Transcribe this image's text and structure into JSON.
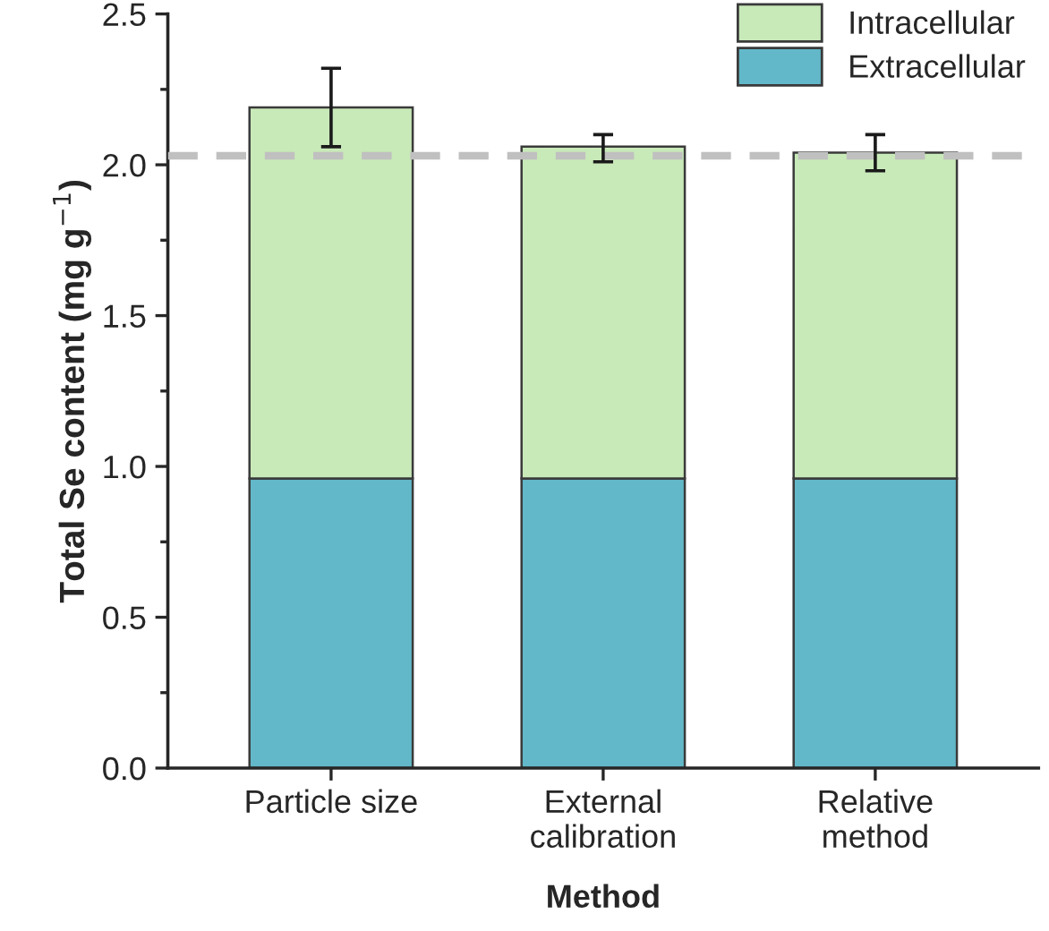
{
  "chart_data": {
    "type": "bar",
    "stacked": true,
    "xlabel": "Method",
    "ylabel": "Total Se content (mg g$^{−1}$)",
    "categories": [
      "Particle size",
      "External\ncalibration",
      "Relative\nmethod"
    ],
    "series": [
      {
        "name": "Extracellular",
        "color": "#62b8c8",
        "values": [
          0.96,
          0.96,
          0.96
        ]
      },
      {
        "name": "Intracellular",
        "color": "#c8e9b8",
        "values": [
          1.23,
          1.1,
          1.08
        ],
        "errors": [
          [
            2.06,
            2.32
          ],
          [
            2.01,
            2.1
          ],
          [
            1.98,
            2.1
          ]
        ]
      }
    ],
    "ylim": [
      0,
      2.5
    ],
    "yticks": [
      {
        "value": 0,
        "label": "0.0"
      },
      0.5,
      {
        "value": 1,
        "label": "1.0"
      },
      1.5,
      {
        "value": 2,
        "label": "2.0"
      },
      2.5
    ],
    "ref_lines": [
      {
        "axis": "y",
        "value": 2.03,
        "color": "#c0c0c0",
        "line_style": "dashed"
      }
    ],
    "legend": "top right",
    "grid": false
  }
}
